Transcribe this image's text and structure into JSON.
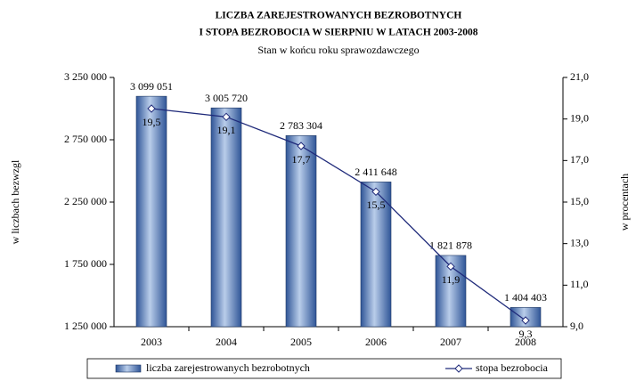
{
  "chart_data": {
    "type": "bar",
    "title": [
      "LICZBA ZAREJESTROWANYCH BEZROBOTNYCH",
      "I STOPA BEZROBOCIA W SIERPNIU W LATACH 2003-2008"
    ],
    "subtitle": "Stan w końcu roku sprawozdawczego",
    "ylabel": "w liczbach bezwzgl",
    "y2label": "w procentach",
    "categories": [
      "2003",
      "2004",
      "2005",
      "2006",
      "2007",
      "2008"
    ],
    "series": [
      {
        "name": "liczba zarejestrowanych bezrobotnych",
        "type": "bar",
        "color": "#4f81bd",
        "values": [
          3099051,
          3005720,
          2783304,
          2411648,
          1821878,
          1404403
        ],
        "value_labels": [
          "3 099 051",
          "3 005 720",
          "2 783 304",
          "2 411 648",
          "1 821 878",
          "1 404 403"
        ]
      },
      {
        "name": "stopa bezrobocia",
        "type": "line",
        "axis": "y2",
        "color": "#1f2a7a",
        "values": [
          19.5,
          19.1,
          17.7,
          15.5,
          11.9,
          9.3
        ],
        "value_labels": [
          "19,5",
          "19,1",
          "17,7",
          "15,5",
          "11,9",
          "9,3"
        ]
      }
    ],
    "ylim": [
      1250000,
      3250000
    ],
    "yticks": [
      {
        "value": 1250000,
        "label": "1 250 000"
      },
      {
        "value": 1750000,
        "label": "1 750 000"
      },
      {
        "value": 2250000,
        "label": "2 250 000"
      },
      {
        "value": 2750000,
        "label": "2 750 000"
      },
      {
        "value": 3250000,
        "label": "3 250 000"
      }
    ],
    "y2lim": [
      9,
      21
    ],
    "y2ticks": [
      {
        "value": 9,
        "label": "9,0"
      },
      {
        "value": 11,
        "label": "11,0"
      },
      {
        "value": 13,
        "label": "13,0"
      },
      {
        "value": 15,
        "label": "15,0"
      },
      {
        "value": 17,
        "label": "17,0"
      },
      {
        "value": 19,
        "label": "19,0"
      },
      {
        "value": 21,
        "label": "21,0"
      }
    ],
    "grid": false,
    "legend": "bottom"
  }
}
